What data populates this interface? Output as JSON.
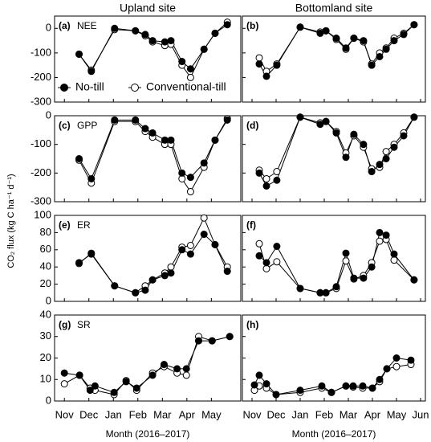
{
  "titles": [
    "Upland site",
    "Bottomland site"
  ],
  "y_label": "CO₂ flux (kg C ha⁻¹ d⁻¹)",
  "chart_data": [
    {
      "type": "line",
      "label": "(a)",
      "name": "NEE",
      "x": [
        0.6,
        1.1,
        2.05,
        2.9,
        3.3,
        3.6,
        4.1,
        4.35,
        4.8,
        5.15,
        5.7,
        6.15,
        6.65
      ],
      "series": [
        {
          "name": "No-till",
          "color": "#000000",
          "fill": "#000000",
          "values": [
            -105,
            -175,
            0,
            -10,
            -25,
            -50,
            -55,
            -50,
            -135,
            -165,
            -85,
            -20,
            15
          ]
        },
        {
          "name": "Conventional-till",
          "color": "#000000",
          "fill": "#ffffff",
          "values": [
            -105,
            -170,
            -5,
            -10,
            -30,
            -55,
            -70,
            -65,
            -150,
            -200,
            -85,
            -20,
            25
          ]
        }
      ],
      "xlim": [
        -0.4,
        7.2
      ],
      "xticks": [
        0,
        1,
        2,
        3,
        4,
        5,
        6
      ],
      "ylim": [
        -300,
        50
      ],
      "yticks": [
        0,
        -100,
        -200,
        -300
      ],
      "legend": "lower left"
    },
    {
      "type": "line",
      "label": "(b)",
      "x": [
        0.3,
        0.6,
        1.03,
        2.0,
        2.83,
        3.07,
        3.5,
        3.9,
        4.23,
        4.63,
        4.97,
        5.3,
        5.57,
        5.9,
        6.3,
        6.73
      ],
      "series": [
        {
          "color": "#000000",
          "fill": "#000000",
          "values": [
            -145,
            -195,
            -150,
            5,
            -20,
            -10,
            -40,
            -80,
            -40,
            -50,
            -150,
            -115,
            -85,
            -50,
            -25,
            15
          ]
        },
        {
          "color": "#000000",
          "fill": "#ffffff",
          "values": [
            -120,
            -175,
            -145,
            5,
            -15,
            -10,
            -45,
            -85,
            -40,
            -55,
            -145,
            -100,
            -80,
            -40,
            -20,
            15
          ]
        }
      ],
      "xlim": [
        -0.4,
        7.2
      ],
      "xticks": [
        0,
        1,
        2,
        3,
        4,
        5,
        6,
        7
      ],
      "ylim": [
        -300,
        50
      ],
      "yticks": [
        0,
        -100,
        -200,
        -300
      ]
    },
    {
      "type": "line",
      "label": "(c)",
      "name": "GPP",
      "x": [
        0.6,
        1.1,
        2.05,
        2.9,
        3.3,
        3.6,
        4.1,
        4.35,
        4.8,
        5.15,
        5.7,
        6.15,
        6.65
      ],
      "series": [
        {
          "color": "#000000",
          "fill": "#000000",
          "values": [
            -150,
            -220,
            -15,
            -15,
            -45,
            -60,
            -85,
            -85,
            -200,
            -215,
            -165,
            -85,
            -15
          ]
        },
        {
          "color": "#000000",
          "fill": "#ffffff",
          "values": [
            -155,
            -235,
            -20,
            -20,
            -55,
            -75,
            -100,
            -100,
            -220,
            -265,
            -180,
            -85,
            -10
          ]
        }
      ],
      "xlim": [
        -0.4,
        7.2
      ],
      "xticks": [
        0,
        1,
        2,
        3,
        4,
        5,
        6
      ],
      "ylim": [
        -300,
        0
      ],
      "yticks": [
        0,
        -100,
        -200,
        -300
      ]
    },
    {
      "type": "line",
      "label": "(d)",
      "x": [
        0.3,
        0.6,
        1.03,
        2.0,
        2.83,
        3.07,
        3.5,
        3.9,
        4.23,
        4.63,
        4.97,
        5.3,
        5.57,
        5.9,
        6.3,
        6.73
      ],
      "series": [
        {
          "color": "#000000",
          "fill": "#000000",
          "values": [
            -200,
            -245,
            -225,
            -5,
            -30,
            -20,
            -60,
            -145,
            -65,
            -100,
            -195,
            -170,
            -150,
            -110,
            -70,
            -5
          ]
        },
        {
          "color": "#000000",
          "fill": "#ffffff",
          "values": [
            -190,
            -220,
            -195,
            -5,
            -25,
            -20,
            -55,
            -130,
            -70,
            -110,
            -185,
            -180,
            -125,
            -100,
            -60,
            -5
          ]
        }
      ],
      "xlim": [
        -0.4,
        7.2
      ],
      "xticks": [
        0,
        1,
        2,
        3,
        4,
        5,
        6,
        7
      ],
      "ylim": [
        -300,
        0
      ],
      "yticks": [
        0,
        -100,
        -200,
        -300
      ]
    },
    {
      "type": "line",
      "label": "(e)",
      "name": "ER",
      "x": [
        0.6,
        1.1,
        2.05,
        2.9,
        3.3,
        3.6,
        4.1,
        4.35,
        4.8,
        5.15,
        5.7,
        6.15,
        6.65
      ],
      "series": [
        {
          "color": "#000000",
          "fill": "#000000",
          "values": [
            45,
            55,
            18,
            10,
            13,
            25,
            30,
            33,
            60,
            55,
            78,
            66,
            35
          ]
        },
        {
          "color": "#000000",
          "fill": "#ffffff",
          "values": [
            44,
            56,
            18,
            10,
            18,
            25,
            33,
            40,
            63,
            65,
            97,
            66,
            40
          ]
        }
      ],
      "xlim": [
        -0.4,
        7.2
      ],
      "xticks": [
        0,
        1,
        2,
        3,
        4,
        5,
        6
      ],
      "ylim": [
        0,
        100
      ],
      "yticks": [
        0,
        20,
        40,
        60,
        80,
        100
      ]
    },
    {
      "type": "line",
      "label": "(f)",
      "x": [
        0.3,
        0.6,
        1.03,
        2.0,
        2.83,
        3.07,
        3.5,
        3.9,
        4.23,
        4.63,
        4.97,
        5.3,
        5.57,
        5.9,
        6.73
      ],
      "series": [
        {
          "color": "#000000",
          "fill": "#000000",
          "values": [
            53,
            45,
            64,
            15,
            10,
            10,
            17,
            56,
            27,
            27,
            40,
            80,
            77,
            55,
            25
          ]
        },
        {
          "color": "#000000",
          "fill": "#ffffff",
          "values": [
            67,
            38,
            46,
            15,
            10,
            10,
            15,
            47,
            26,
            30,
            45,
            70,
            72,
            48,
            25
          ]
        }
      ],
      "xlim": [
        -0.4,
        7.2
      ],
      "xticks": [
        0,
        1,
        2,
        3,
        4,
        5,
        6,
        7
      ],
      "ylim": [
        0,
        100
      ],
      "yticks": [
        0,
        20,
        40,
        60,
        80,
        100
      ]
    },
    {
      "type": "line",
      "label": "(g)",
      "name": "SR",
      "x": [
        0.0,
        0.62,
        1.05,
        1.25,
        2.03,
        2.52,
        2.95,
        3.6,
        4.07,
        4.6,
        4.98,
        5.48,
        6.03,
        6.75
      ],
      "series": [
        {
          "color": "#000000",
          "fill": "#000000",
          "values": [
            13,
            12,
            5,
            7,
            4,
            9,
            6,
            12,
            17,
            15,
            15,
            28,
            28,
            30
          ]
        },
        {
          "color": "#000000",
          "fill": "#ffffff",
          "values": [
            8,
            12,
            6,
            5,
            3,
            9.5,
            5,
            13,
            16,
            13,
            12,
            30,
            28,
            30
          ]
        }
      ],
      "xlim": [
        -0.4,
        7.2
      ],
      "xticks": [
        {
          "value": 0,
          "label": "Nov"
        },
        {
          "value": 1,
          "label": "Dec"
        },
        {
          "value": 2,
          "label": "Jan"
        },
        {
          "value": 3,
          "label": "Feb"
        },
        {
          "value": 4,
          "label": "Mar"
        },
        {
          "value": 5,
          "label": "Apr"
        },
        {
          "value": 6,
          "label": "May"
        }
      ],
      "ylim": [
        0,
        40
      ],
      "yticks": [
        0,
        10,
        20,
        30,
        40
      ],
      "x_label": "Month (2016–2017)"
    },
    {
      "type": "line",
      "label": "(h)",
      "x": [
        0.1,
        0.3,
        0.6,
        1.0,
        2.0,
        2.9,
        3.3,
        3.9,
        4.2,
        4.6,
        5.0,
        5.3,
        5.6,
        6.0,
        6.6
      ],
      "series": [
        {
          "color": "#000000",
          "fill": "#000000",
          "values": [
            7.5,
            12,
            8,
            3,
            5,
            7,
            4,
            7,
            7,
            7,
            6,
            10,
            15,
            20,
            19
          ]
        },
        {
          "color": "#000000",
          "fill": "#ffffff",
          "values": [
            5,
            7,
            6,
            3,
            4,
            6,
            4,
            7,
            6.5,
            6,
            6,
            9,
            15,
            16,
            17
          ]
        }
      ],
      "xlim": [
        -0.4,
        7.2
      ],
      "xticks": [
        {
          "value": 0,
          "label": "Nov"
        },
        {
          "value": 1,
          "label": "Dec"
        },
        {
          "value": 2,
          "label": "Jan"
        },
        {
          "value": 3,
          "label": "Feb"
        },
        {
          "value": 4,
          "label": "Mar"
        },
        {
          "value": 5,
          "label": "Apr"
        },
        {
          "value": 6,
          "label": "May"
        },
        {
          "value": 7,
          "label": "Jun"
        }
      ],
      "ylim": [
        0,
        40
      ],
      "yticks": [
        0,
        10,
        20,
        30,
        40
      ],
      "x_label": "Month (2016–2017)"
    }
  ]
}
